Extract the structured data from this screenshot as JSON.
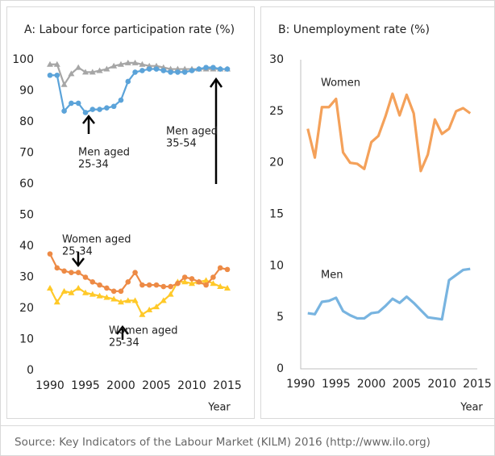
{
  "chart_data": [
    {
      "type": "line",
      "title": "A: Labour force participation rate (%)",
      "xlabel": "Year",
      "x": [
        1990,
        1991,
        1992,
        1993,
        1994,
        1995,
        1996,
        1997,
        1998,
        1999,
        2000,
        2001,
        2002,
        2003,
        2004,
        2005,
        2006,
        2007,
        2008,
        2009,
        2010,
        2011,
        2012,
        2013,
        2014,
        2015
      ],
      "xlim": [
        1990,
        2015
      ],
      "xticks": [
        1990,
        1995,
        2000,
        2005,
        2010,
        2015
      ],
      "ylim": [
        0,
        100
      ],
      "yticks": [
        0,
        10,
        20,
        30,
        40,
        50,
        60,
        70,
        80,
        90,
        100
      ],
      "series": [
        {
          "color": "#a6a6a6",
          "marker": "triangle",
          "values": [
            98.5,
            98.5,
            92,
            95.5,
            97.5,
            96,
            96,
            96.5,
            97,
            98,
            98.5,
            99,
            99,
            98.5,
            98,
            98,
            97.5,
            97,
            97,
            97,
            97,
            97,
            97,
            97,
            97,
            97
          ]
        },
        {
          "color": "#5ba3d9",
          "marker": "circle",
          "values": [
            95,
            95,
            83.5,
            86,
            86,
            83,
            84,
            84,
            84.5,
            85,
            87,
            93,
            96,
            96.5,
            97,
            97,
            96.5,
            96,
            96,
            96,
            96.5,
            97,
            97.5,
            97.5,
            97,
            97
          ]
        },
        {
          "color": "#ffc928",
          "marker": "triangle",
          "values": [
            26.5,
            22,
            25.5,
            25,
            26.5,
            25,
            24.5,
            24,
            23.5,
            23,
            22,
            22.5,
            22.5,
            18,
            19.5,
            20.5,
            22.5,
            24.5,
            28.5,
            28.5,
            28,
            28.5,
            29,
            28,
            27,
            26.5
          ]
        },
        {
          "color": "#ed8a45",
          "marker": "circle",
          "values": [
            37.5,
            33,
            32,
            31.5,
            31.5,
            30,
            28.5,
            27.5,
            26.5,
            25.5,
            25.5,
            28.5,
            31.5,
            27.5,
            27.5,
            27.5,
            27,
            27,
            28,
            30,
            29.5,
            28.5,
            27.5,
            30,
            33,
            32.5
          ]
        }
      ],
      "annotations": [
        [
          "Men aged",
          "25-34"
        ],
        [
          "Men aged",
          "35-54"
        ],
        [
          "Women aged",
          "25-34"
        ],
        [
          "Women aged",
          "25-34"
        ]
      ]
    },
    {
      "type": "line",
      "title": "B: Unemployment rate (%)",
      "xlabel": "Year",
      "x": [
        1991,
        1992,
        1993,
        1994,
        1995,
        1996,
        1997,
        1998,
        1999,
        2000,
        2001,
        2002,
        2003,
        2004,
        2005,
        2006,
        2007,
        2008,
        2009,
        2010,
        2011,
        2012,
        2013,
        2014
      ],
      "xlim": [
        1990,
        2015
      ],
      "xticks": [
        1990,
        1995,
        2000,
        2005,
        2010,
        2015
      ],
      "ylim": [
        0,
        30
      ],
      "yticks": [
        0,
        5,
        10,
        15,
        20,
        25,
        30
      ],
      "series": [
        {
          "name": "Women",
          "color": "#f4a15a",
          "values": [
            23.3,
            20.5,
            25.4,
            25.4,
            26.2,
            21,
            20,
            19.9,
            19.4,
            22,
            22.6,
            24.5,
            26.7,
            24.6,
            26.6,
            24.8,
            19.2,
            20.8,
            24.2,
            22.8,
            23.3,
            25,
            25.3,
            24.8
          ]
        },
        {
          "name": "Men",
          "color": "#78b4e0",
          "values": [
            5.4,
            5.3,
            6.5,
            6.6,
            6.9,
            5.6,
            5.2,
            4.9,
            4.9,
            5.4,
            5.5,
            6.1,
            6.8,
            6.4,
            7.0,
            6.4,
            5.7,
            5.0,
            4.9,
            4.8,
            8.6,
            9.1,
            9.6,
            9.7
          ]
        }
      ]
    }
  ],
  "source": "Source: Key Indicators of the Labour Market (KILM) 2016 (http://www.ilo.org)"
}
